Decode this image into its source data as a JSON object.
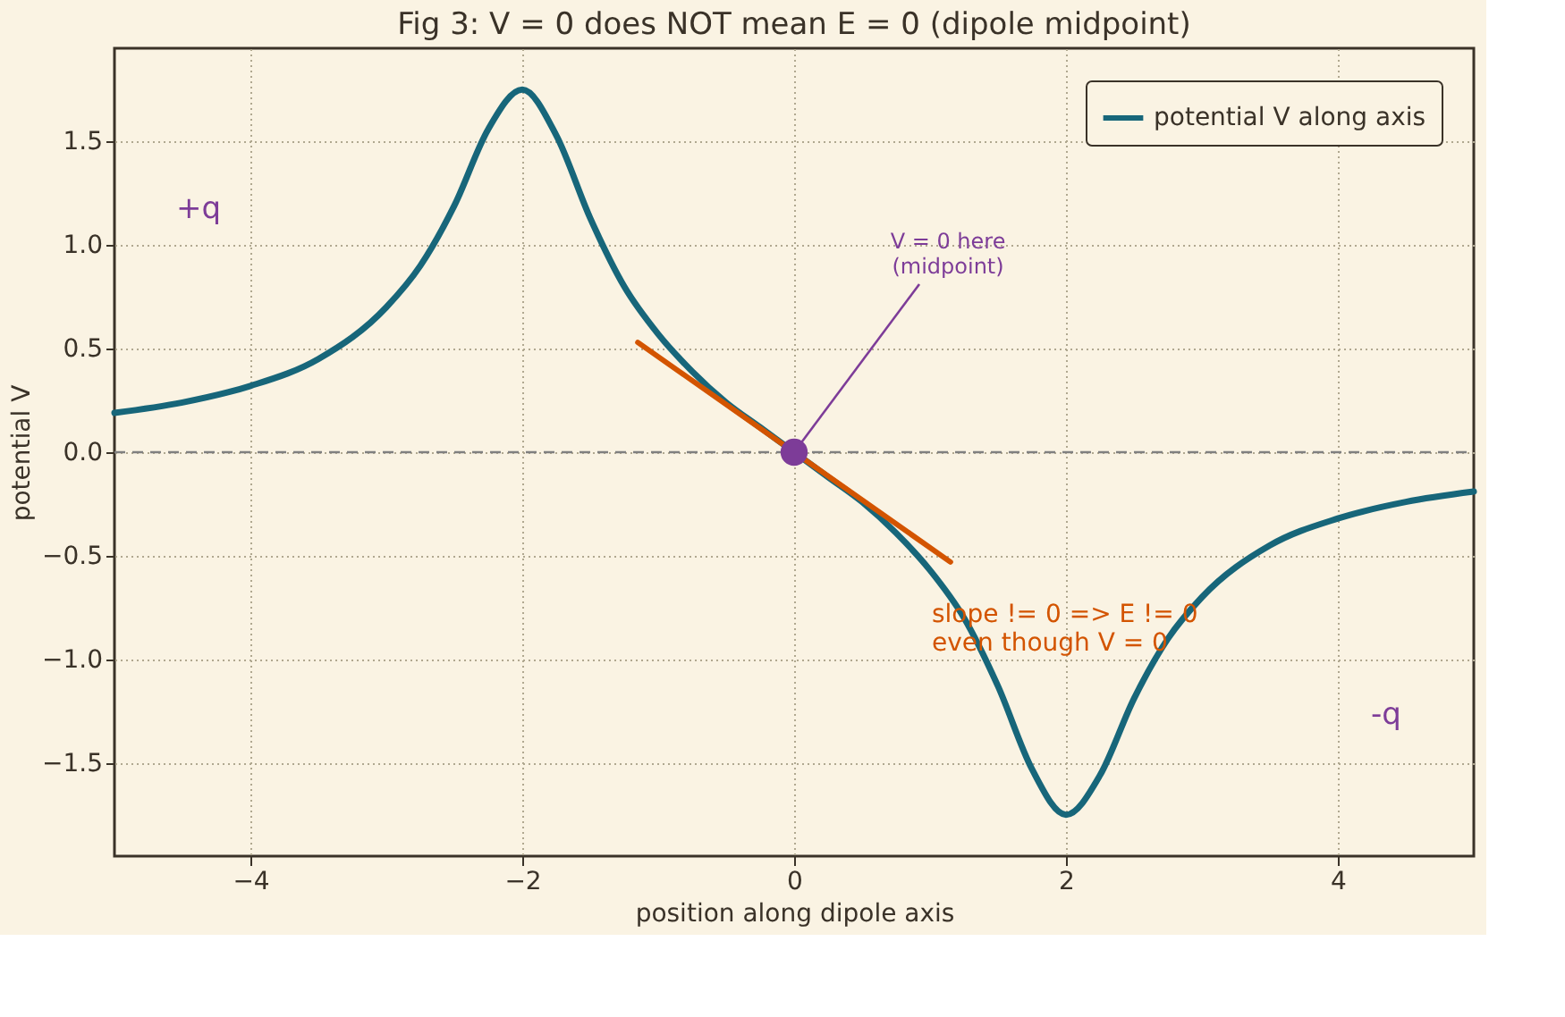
{
  "chart_data": {
    "type": "line",
    "title": "Fig 3: V = 0 does NOT mean E = 0 (dipole midpoint)",
    "xlabel": "position along dipole axis",
    "ylabel": "potential  V",
    "xlim": [
      -5,
      5
    ],
    "ylim": [
      -1.95,
      1.95
    ],
    "xticks": [
      {
        "value": -4,
        "label": "−4"
      },
      {
        "value": -2,
        "label": "−2"
      },
      0,
      2,
      4
    ],
    "yticks": [
      {
        "value": -1.5,
        "label": "−1.5"
      },
      {
        "value": -1,
        "label": "−1.0"
      },
      {
        "value": -0.5,
        "label": "−0.5"
      },
      {
        "value": 0,
        "label": "0.0"
      },
      0.5,
      {
        "value": 1,
        "label": "1.0"
      },
      1.5
    ],
    "grid": true,
    "legend": "top right",
    "series": [
      {
        "name": "potential V along axis",
        "color": "#17667a",
        "x": [
          -5,
          -4.5,
          -4,
          -3.5,
          -3,
          -2.75,
          -2.5,
          -2.25,
          -2,
          -1.75,
          -1.5,
          -1.25,
          -1,
          -0.75,
          -0.5,
          -0.25,
          0,
          0.25,
          0.5,
          0.75,
          1,
          1.25,
          1.5,
          1.75,
          2,
          2.25,
          2.5,
          2.75,
          3,
          3.5,
          4,
          4.5,
          5
        ],
        "values": [
          0.19,
          0.24,
          0.32,
          0.45,
          0.7,
          0.9,
          1.19,
          1.56,
          1.75,
          1.53,
          1.13,
          0.8,
          0.57,
          0.39,
          0.24,
          0.12,
          0,
          -0.12,
          -0.24,
          -0.39,
          -0.57,
          -0.8,
          -1.13,
          -1.53,
          -1.75,
          -1.56,
          -1.19,
          -0.9,
          -0.7,
          -0.45,
          -0.32,
          -0.24,
          -0.19
        ]
      },
      {
        "type": "line",
        "color": "#d35400",
        "x": [
          -1.15,
          1.15
        ],
        "values": [
          0.53,
          -0.53
        ]
      },
      {
        "type": "scatter",
        "color": "#7d3c98",
        "x": [
          0
        ],
        "values": [
          0
        ]
      }
    ],
    "ref_lines": [
      {
        "axis": "y",
        "value": 0,
        "color": "#808080",
        "line_style": "dashed"
      }
    ],
    "annotations": [
      "+q",
      "-q",
      {
        "text": "V = 0 here\n(midpoint)",
        "x": 0,
        "y": 0
      },
      "slope != 0  =>  E != 0\neven though V = 0"
    ]
  }
}
